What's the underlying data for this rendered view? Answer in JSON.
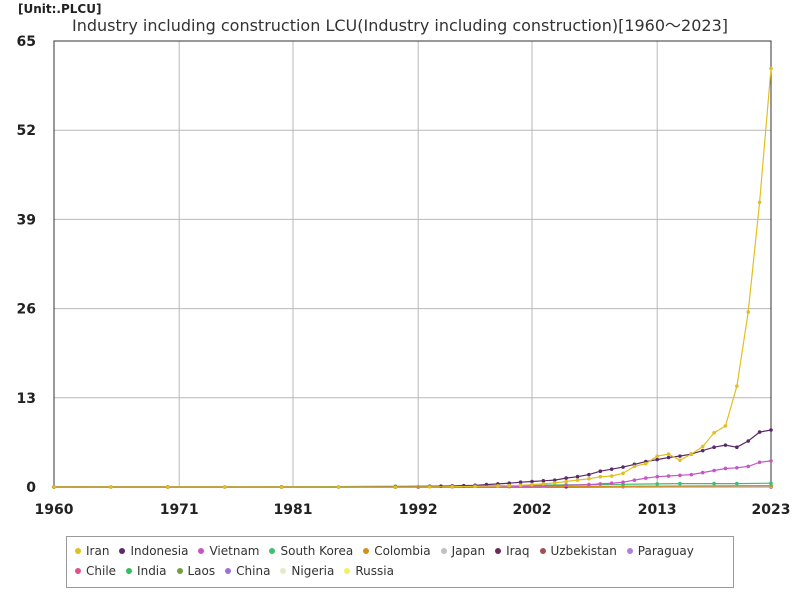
{
  "unit_label": "[Unit:.PLCU]",
  "chart_data": {
    "type": "line",
    "title": "Industry including construction LCU(Industry including construction)[1960～2023]",
    "xlabel": "",
    "ylabel": "",
    "xlim": [
      1960,
      2023
    ],
    "ylim": [
      0,
      65
    ],
    "x_ticks": [
      "1960",
      "1971",
      "1981",
      "1992",
      "2002",
      "2013",
      "2023"
    ],
    "y_ticks": [
      "0",
      "13",
      "26",
      "39",
      "52",
      "65"
    ],
    "grid": true,
    "legend_position": "bottom",
    "series": [
      {
        "name": "Iran",
        "color": "#e0c020",
        "x": [
          1960,
          1965,
          1970,
          1975,
          1980,
          1985,
          1990,
          1993,
          1995,
          1997,
          1999,
          2000,
          2001,
          2002,
          2003,
          2004,
          2005,
          2006,
          2007,
          2008,
          2009,
          2010,
          2011,
          2012,
          2013,
          2014,
          2015,
          2016,
          2017,
          2018,
          2019,
          2020,
          2021,
          2022,
          2023
        ],
        "y": [
          0,
          0,
          0,
          0,
          0,
          0,
          0,
          0.02,
          0.05,
          0.1,
          0.15,
          0.2,
          0.25,
          0.35,
          0.45,
          0.6,
          0.8,
          1.0,
          1.2,
          1.5,
          1.6,
          2.0,
          3.0,
          3.4,
          4.5,
          4.8,
          3.9,
          4.8,
          5.9,
          7.9,
          8.9,
          14.7,
          25.5,
          41.5,
          61.0
        ]
      },
      {
        "name": "Indonesia",
        "color": "#5a2a6a",
        "x": [
          1960,
          1965,
          1970,
          1975,
          1980,
          1985,
          1990,
          1993,
          1994,
          1995,
          1996,
          1997,
          1998,
          1999,
          2000,
          2001,
          2002,
          2003,
          2004,
          2005,
          2006,
          2007,
          2008,
          2009,
          2010,
          2011,
          2012,
          2013,
          2014,
          2015,
          2016,
          2017,
          2018,
          2019,
          2020,
          2021,
          2022,
          2023
        ],
        "y": [
          0,
          0,
          0,
          0,
          0,
          0,
          0.05,
          0.1,
          0.12,
          0.15,
          0.2,
          0.25,
          0.35,
          0.45,
          0.55,
          0.7,
          0.8,
          0.9,
          1.0,
          1.3,
          1.5,
          1.8,
          2.3,
          2.6,
          2.9,
          3.3,
          3.7,
          4.0,
          4.3,
          4.5,
          4.8,
          5.3,
          5.8,
          6.1,
          5.8,
          6.7,
          8.0,
          8.3
        ]
      },
      {
        "name": "Vietnam",
        "color": "#c855c8",
        "x": [
          1960,
          1970,
          1980,
          1990,
          1995,
          2000,
          2003,
          2005,
          2007,
          2008,
          2009,
          2010,
          2011,
          2012,
          2013,
          2014,
          2015,
          2016,
          2017,
          2018,
          2019,
          2020,
          2021,
          2022,
          2023
        ],
        "y": [
          0,
          0,
          0,
          0,
          0.02,
          0.08,
          0.15,
          0.25,
          0.35,
          0.45,
          0.55,
          0.7,
          1.0,
          1.3,
          1.5,
          1.6,
          1.7,
          1.8,
          2.1,
          2.4,
          2.7,
          2.8,
          3.0,
          3.6,
          3.8
        ]
      },
      {
        "name": "South Korea",
        "color": "#3cc070",
        "x": [
          1960,
          1970,
          1980,
          1990,
          2000,
          2005,
          2010,
          2013,
          2015,
          2018,
          2020,
          2023
        ],
        "y": [
          0,
          0,
          0.02,
          0.1,
          0.2,
          0.3,
          0.4,
          0.45,
          0.5,
          0.5,
          0.5,
          0.55
        ]
      },
      {
        "name": "Colombia",
        "color": "#d4901a",
        "x": [
          1960,
          1980,
          2000,
          2010,
          2023
        ],
        "y": [
          0,
          0,
          0.05,
          0.1,
          0.2
        ]
      },
      {
        "name": "Japan",
        "color": "#c0c0c0",
        "x": [
          1960,
          1980,
          2000,
          2023
        ],
        "y": [
          0,
          0.05,
          0.1,
          0.1
        ]
      },
      {
        "name": "Iraq",
        "color": "#6a2a5a",
        "x": [
          1960,
          1990,
          2005,
          2023
        ],
        "y": [
          0,
          0,
          0.05,
          0.15
        ]
      },
      {
        "name": "Uzbekistan",
        "color": "#a05050",
        "x": [
          1992,
          2005,
          2023
        ],
        "y": [
          0,
          0.02,
          0.1
        ]
      },
      {
        "name": "Paraguay",
        "color": "#b080e0",
        "x": [
          1960,
          1990,
          2010,
          2023
        ],
        "y": [
          0,
          0,
          0.03,
          0.06
        ]
      },
      {
        "name": "Chile",
        "color": "#e05090",
        "x": [
          1960,
          1990,
          2023
        ],
        "y": [
          0,
          0,
          0.02
        ]
      },
      {
        "name": "India",
        "color": "#30c060",
        "x": [
          1960,
          1990,
          2023
        ],
        "y": [
          0,
          0,
          0.02
        ]
      },
      {
        "name": "Laos",
        "color": "#70a040",
        "x": [
          1960,
          1990,
          2023
        ],
        "y": [
          0,
          0,
          0.02
        ]
      },
      {
        "name": "China",
        "color": "#a070d0",
        "x": [
          1960,
          1990,
          2023
        ],
        "y": [
          0,
          0,
          0.01
        ]
      },
      {
        "name": "Nigeria",
        "color": "#e8e8c8",
        "x": [
          1960,
          1990,
          2023
        ],
        "y": [
          0,
          0,
          0.01
        ]
      },
      {
        "name": "Russia",
        "color": "#f0f060",
        "x": [
          1992,
          2023
        ],
        "y": [
          0,
          0.01
        ]
      }
    ]
  }
}
